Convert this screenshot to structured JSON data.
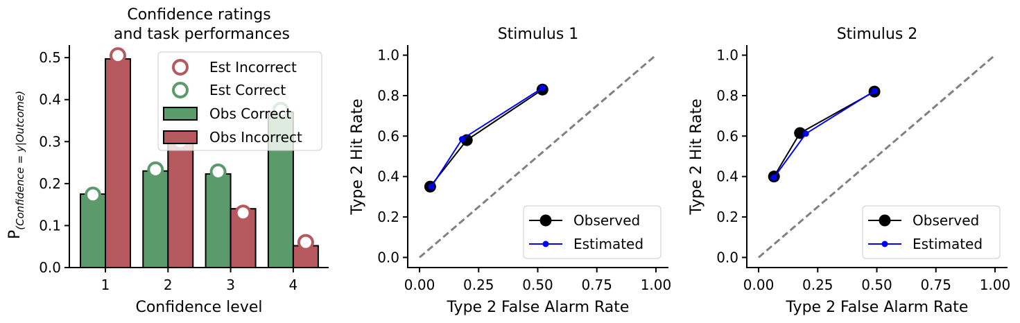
{
  "chart_data": [
    {
      "type": "bar",
      "title_lines": [
        "Confidence ratings",
        "and task performances"
      ],
      "xlabel": "Confidence level",
      "ylabel_main": "P",
      "ylabel_sub": "(Confidence = y|Outcome)",
      "categories": [
        "1",
        "2",
        "3",
        "4"
      ],
      "ylim": [
        0,
        0.53
      ],
      "yticks": [
        "0.0",
        "0.1",
        "0.2",
        "0.3",
        "0.4",
        "0.5"
      ],
      "legend_position": "top-right",
      "series": [
        {
          "name": "Obs Correct",
          "kind": "bar",
          "color": "#5b9a6a",
          "values": [
            0.175,
            0.23,
            0.223,
            0.37
          ]
        },
        {
          "name": "Obs Incorrect",
          "kind": "bar",
          "color": "#b5595f",
          "values": [
            0.497,
            0.31,
            0.14,
            0.052
          ]
        },
        {
          "name": "Est Incorrect",
          "kind": "marker",
          "color": "#b5595f",
          "values": [
            0.505,
            0.3,
            0.13,
            0.06
          ]
        },
        {
          "name": "Est Correct",
          "kind": "marker",
          "color": "#5b9a6a",
          "values": [
            0.173,
            0.233,
            0.228,
            0.375
          ]
        }
      ],
      "legend": [
        "Est Incorrect",
        "Est Correct",
        "Obs Correct",
        "Obs Incorrect"
      ]
    },
    {
      "type": "line",
      "title": "Stimulus 1",
      "xlabel": "Type 2 False Alarm Rate",
      "ylabel": "Type 2 Hit Rate",
      "xlim": [
        -0.05,
        1.05
      ],
      "ylim": [
        -0.05,
        1.05
      ],
      "xticks": [
        "0.00",
        "0.25",
        "0.50",
        "0.75",
        "1.00"
      ],
      "yticks": [
        "0.0",
        "0.2",
        "0.4",
        "0.6",
        "0.8",
        "1.0"
      ],
      "legend_position": "bottom-right",
      "series": [
        {
          "name": "Observed",
          "color": "#000000",
          "x": [
            0.045,
            0.2,
            0.52
          ],
          "y": [
            0.35,
            0.58,
            0.83
          ]
        },
        {
          "name": "Estimated",
          "color": "#0000ff",
          "x": [
            0.05,
            0.18,
            0.52
          ],
          "y": [
            0.35,
            0.585,
            0.838
          ]
        }
      ],
      "reference": {
        "x": [
          0,
          1
        ],
        "y": [
          0,
          1
        ],
        "color": "#808080",
        "style": "dashed"
      }
    },
    {
      "type": "line",
      "title": "Stimulus 2",
      "xlabel": "Type 2 False Alarm Rate",
      "ylabel": "Type 2 Hit Rate",
      "xlim": [
        -0.05,
        1.05
      ],
      "ylim": [
        -0.05,
        1.05
      ],
      "xticks": [
        "0.00",
        "0.25",
        "0.50",
        "0.75",
        "1.00"
      ],
      "yticks": [
        "0.0",
        "0.2",
        "0.4",
        "0.6",
        "0.8",
        "1.0"
      ],
      "legend_position": "bottom-right",
      "series": [
        {
          "name": "Observed",
          "color": "#000000",
          "x": [
            0.065,
            0.175,
            0.49
          ],
          "y": [
            0.4,
            0.615,
            0.82
          ]
        },
        {
          "name": "Estimated",
          "color": "#0000ff",
          "x": [
            0.065,
            0.2,
            0.49
          ],
          "y": [
            0.395,
            0.612,
            0.823
          ]
        }
      ],
      "reference": {
        "x": [
          0,
          1
        ],
        "y": [
          0,
          1
        ],
        "color": "#808080",
        "style": "dashed"
      }
    }
  ]
}
